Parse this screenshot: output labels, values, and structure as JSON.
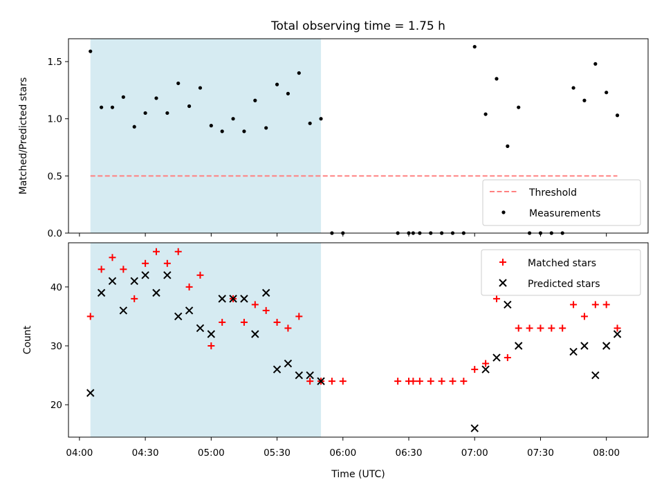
{
  "colors": {
    "span_fill": "#add8e6",
    "threshold": "#ff8080",
    "measurement": "#000000",
    "matched": "#ff0000",
    "predicted": "#000000"
  },
  "chart_data": [
    {
      "type": "scatter",
      "title": "Total observing time = 1.75 h",
      "xlabel": "",
      "ylabel": "Matched/Predicted stars",
      "xlim": [
        "03:55",
        "08:19"
      ],
      "ylim": [
        0,
        1.7
      ],
      "y_ticks": [
        "0.0",
        "0.5",
        "1.0",
        "1.5"
      ],
      "x_tick_labels_shown": false,
      "shaded_span": {
        "start": "04:05",
        "end": "05:50"
      },
      "threshold": {
        "name": "Threshold",
        "y": 0.5,
        "x_start": "04:05",
        "x_end": "08:05",
        "style": "dashed"
      },
      "legend_position": "lower-right",
      "series": [
        {
          "name": "Measurements",
          "x": [
            "04:05",
            "04:10",
            "04:15",
            "04:20",
            "04:25",
            "04:30",
            "04:35",
            "04:40",
            "04:45",
            "04:50",
            "04:55",
            "05:00",
            "05:05",
            "05:10",
            "05:15",
            "05:20",
            "05:25",
            "05:30",
            "05:35",
            "05:40",
            "05:45",
            "05:50",
            "05:55",
            "06:00",
            "06:25",
            "06:30",
            "06:32",
            "06:35",
            "06:40",
            "06:45",
            "06:50",
            "06:55",
            "07:00",
            "07:05",
            "07:10",
            "07:15",
            "07:20",
            "07:25",
            "07:30",
            "07:35",
            "07:40",
            "07:45",
            "07:50",
            "07:55",
            "08:00",
            "08:05"
          ],
          "y": [
            1.59,
            1.1,
            1.1,
            1.19,
            0.93,
            1.05,
            1.18,
            1.05,
            1.31,
            1.11,
            1.27,
            0.94,
            0.89,
            1.0,
            0.89,
            1.16,
            0.92,
            1.3,
            1.22,
            1.4,
            0.96,
            1.0,
            0,
            0,
            0,
            0,
            0,
            0,
            0,
            0,
            0,
            0,
            1.63,
            1.04,
            1.35,
            0.76,
            1.1,
            0,
            0,
            0,
            0,
            1.27,
            1.16,
            1.48,
            1.23,
            1.03
          ]
        }
      ]
    },
    {
      "type": "scatter",
      "title": "",
      "xlabel": "Time (UTC)",
      "ylabel": "Count",
      "xlim": [
        "03:55",
        "08:19"
      ],
      "ylim": [
        14.5,
        47.5
      ],
      "y_ticks": [
        "20",
        "30",
        "40"
      ],
      "x_ticks": [
        "04:00",
        "04:30",
        "05:00",
        "05:30",
        "06:00",
        "06:30",
        "07:00",
        "07:30",
        "08:00"
      ],
      "shaded_span": {
        "start": "04:05",
        "end": "05:50"
      },
      "legend_position": "upper-right",
      "series": [
        {
          "name": "Matched stars",
          "marker": "+",
          "points": [
            [
              "04:05",
              35
            ],
            [
              "04:10",
              43
            ],
            [
              "04:15",
              45
            ],
            [
              "04:20",
              43
            ],
            [
              "04:25",
              38
            ],
            [
              "04:30",
              44
            ],
            [
              "04:35",
              46
            ],
            [
              "04:40",
              44
            ],
            [
              "04:45",
              46
            ],
            [
              "04:50",
              40
            ],
            [
              "04:55",
              42
            ],
            [
              "05:00",
              30
            ],
            [
              "05:05",
              34
            ],
            [
              "05:10",
              38
            ],
            [
              "05:15",
              34
            ],
            [
              "05:20",
              37
            ],
            [
              "05:25",
              36
            ],
            [
              "05:30",
              34
            ],
            [
              "05:35",
              33
            ],
            [
              "05:40",
              35
            ],
            [
              "05:45",
              24
            ],
            [
              "05:50",
              24
            ],
            [
              "05:55",
              24
            ],
            [
              "06:00",
              24
            ],
            [
              "06:25",
              24
            ],
            [
              "06:30",
              24
            ],
            [
              "06:32",
              24
            ],
            [
              "06:35",
              24
            ],
            [
              "06:40",
              24
            ],
            [
              "06:45",
              24
            ],
            [
              "06:50",
              24
            ],
            [
              "06:55",
              24
            ],
            [
              "07:00",
              26
            ],
            [
              "07:05",
              27
            ],
            [
              "07:10",
              38
            ],
            [
              "07:15",
              28
            ],
            [
              "07:20",
              33
            ],
            [
              "07:25",
              33
            ],
            [
              "07:30",
              33
            ],
            [
              "07:35",
              33
            ],
            [
              "07:40",
              33
            ],
            [
              "07:45",
              37
            ],
            [
              "07:50",
              35
            ],
            [
              "07:55",
              37
            ],
            [
              "08:00",
              37
            ],
            [
              "08:05",
              33
            ]
          ]
        },
        {
          "name": "Predicted stars",
          "marker": "x",
          "points": [
            [
              "04:05",
              22
            ],
            [
              "04:10",
              39
            ],
            [
              "04:15",
              41
            ],
            [
              "04:20",
              36
            ],
            [
              "04:25",
              41
            ],
            [
              "04:30",
              42
            ],
            [
              "04:35",
              39
            ],
            [
              "04:40",
              42
            ],
            [
              "04:45",
              35
            ],
            [
              "04:50",
              36
            ],
            [
              "04:55",
              33
            ],
            [
              "05:00",
              32
            ],
            [
              "05:05",
              38
            ],
            [
              "05:10",
              38
            ],
            [
              "05:15",
              38
            ],
            [
              "05:20",
              32
            ],
            [
              "05:25",
              39
            ],
            [
              "05:30",
              26
            ],
            [
              "05:35",
              27
            ],
            [
              "05:40",
              25
            ],
            [
              "05:45",
              25
            ],
            [
              "05:50",
              24
            ],
            [
              "07:00",
              16
            ],
            [
              "07:05",
              26
            ],
            [
              "07:10",
              28
            ],
            [
              "07:15",
              37
            ],
            [
              "07:20",
              30
            ],
            [
              "07:45",
              29
            ],
            [
              "07:50",
              30
            ],
            [
              "07:55",
              25
            ],
            [
              "08:00",
              30
            ],
            [
              "08:05",
              32
            ]
          ]
        }
      ]
    }
  ]
}
